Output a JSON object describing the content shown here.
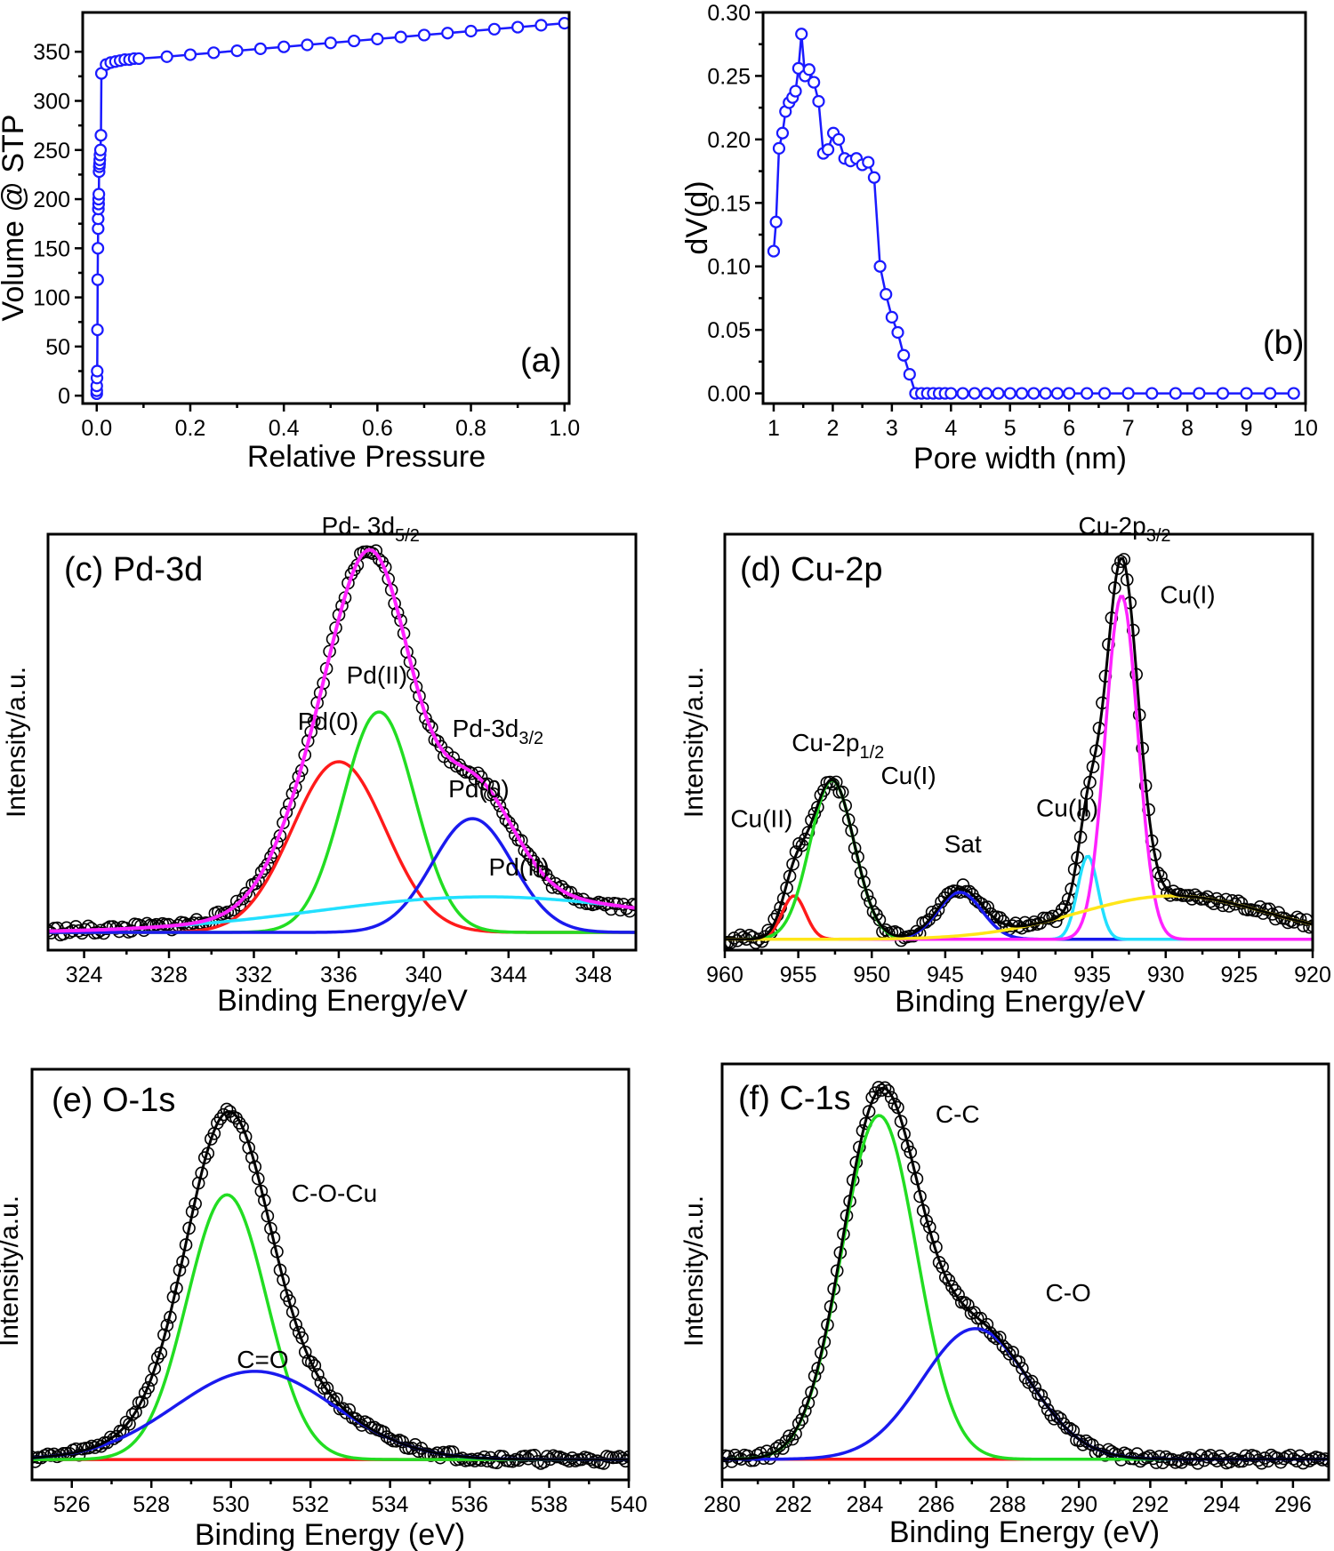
{
  "chart_data": [
    {
      "id": "a",
      "type": "line",
      "panel_label": "(a)",
      "xlabel": "Relative Pressure",
      "ylabel": "Volume @ STP",
      "xlim": [
        -0.03,
        1.01
      ],
      "ylim": [
        -8,
        390
      ],
      "xticks": [
        0.0,
        0.2,
        0.4,
        0.6,
        0.8,
        1.0
      ],
      "xtick_labels": [
        "0.0",
        "0.2",
        "0.4",
        "0.6",
        "0.8",
        "1.0"
      ],
      "yticks": [
        0,
        50,
        100,
        150,
        200,
        250,
        300,
        350
      ],
      "ytick_labels": [
        "0",
        "50",
        "100",
        "150",
        "200",
        "250",
        "300",
        "350"
      ],
      "series": [
        {
          "color": "#1a1aff",
          "marker": "circle",
          "x": [
            0.0,
            0.0,
            0.0,
            0.0005,
            0.001,
            0.0015,
            0.002,
            0.0025,
            0.003,
            0.003,
            0.0035,
            0.004,
            0.004,
            0.0045,
            0.005,
            0.0055,
            0.006,
            0.0065,
            0.007,
            0.008,
            0.009,
            0.01,
            0.02,
            0.03,
            0.04,
            0.05,
            0.06,
            0.07,
            0.08,
            0.09,
            0.15,
            0.2,
            0.25,
            0.3,
            0.35,
            0.4,
            0.45,
            0.5,
            0.55,
            0.6,
            0.65,
            0.7,
            0.75,
            0.8,
            0.85,
            0.9,
            0.95,
            1.0
          ],
          "y": [
            2,
            5,
            10,
            18,
            25,
            67,
            118,
            150,
            170,
            180,
            190,
            195,
            200,
            205,
            228,
            233,
            236,
            240,
            245,
            250,
            265,
            328,
            337,
            339,
            340,
            341,
            342,
            342,
            343,
            343,
            345,
            347,
            349,
            351,
            353,
            355,
            357,
            359,
            361,
            363,
            365,
            367,
            369,
            371,
            373,
            375,
            377,
            379
          ]
        }
      ]
    },
    {
      "id": "b",
      "type": "line",
      "panel_label": "(b)",
      "xlabel": "Pore width (nm)",
      "ylabel": "dV(d)",
      "xlim": [
        0.82,
        10.0
      ],
      "ylim": [
        -0.008,
        0.3
      ],
      "xticks": [
        1,
        2,
        3,
        4,
        5,
        6,
        7,
        8,
        9,
        10
      ],
      "xtick_labels": [
        "1",
        "2",
        "3",
        "4",
        "5",
        "6",
        "7",
        "8",
        "9",
        "10"
      ],
      "yticks": [
        0.0,
        0.05,
        0.1,
        0.15,
        0.2,
        0.25,
        0.3
      ],
      "ytick_labels": [
        "0.00",
        "0.05",
        "0.10",
        "0.15",
        "0.20",
        "0.25",
        "0.30"
      ],
      "series": [
        {
          "color": "#1a1aff",
          "marker": "circle",
          "x": [
            1.0,
            1.04,
            1.09,
            1.15,
            1.2,
            1.26,
            1.32,
            1.37,
            1.42,
            1.47,
            1.53,
            1.6,
            1.68,
            1.76,
            1.84,
            1.92,
            2.01,
            2.1,
            2.2,
            2.3,
            2.4,
            2.5,
            2.6,
            2.7,
            2.8,
            2.9,
            3.0,
            3.1,
            3.2,
            3.3,
            3.4,
            3.5,
            3.6,
            3.7,
            3.8,
            3.9,
            4.0,
            4.2,
            4.4,
            4.6,
            4.8,
            5.0,
            5.2,
            5.4,
            5.6,
            5.8,
            6.0,
            6.3,
            6.6,
            7.0,
            7.4,
            7.8,
            8.2,
            8.6,
            9.0,
            9.4,
            9.8
          ],
          "y": [
            0.112,
            0.135,
            0.193,
            0.205,
            0.222,
            0.229,
            0.233,
            0.238,
            0.256,
            0.283,
            0.25,
            0.255,
            0.245,
            0.23,
            0.189,
            0.192,
            0.205,
            0.2,
            0.185,
            0.183,
            0.185,
            0.18,
            0.182,
            0.17,
            0.1,
            0.078,
            0.06,
            0.048,
            0.03,
            0.015,
            0.0,
            0.0,
            0.0,
            0.0,
            0.0,
            0.0,
            0.0,
            0.0,
            0.0,
            0.0,
            0.0,
            0.0,
            0.0,
            0.0,
            0.0,
            0.0,
            0.0,
            0.0,
            0.0,
            0.0,
            0.0,
            0.0,
            0.0,
            0.0,
            0.0,
            0.0,
            0.0
          ]
        }
      ]
    },
    {
      "id": "c",
      "type": "line",
      "panel_label": "(c) Pd-3d",
      "xlabel": "Binding Energy/eV",
      "ylabel": "Intensity/a.u.",
      "xlim": [
        322.3,
        350.0
      ],
      "ylim": [
        -0.05,
        1.12
      ],
      "xticks": [
        324,
        328,
        332,
        336,
        340,
        344,
        348
      ],
      "xtick_labels": [
        "324",
        "328",
        "332",
        "336",
        "340",
        "344",
        "348"
      ],
      "annotations": [
        {
          "text": "Pd- 3d",
          "sub": "5/2",
          "x": 337.5,
          "y": 1.12
        },
        {
          "text": "Pd(II)",
          "sub": "",
          "x": 337.8,
          "y": 0.7
        },
        {
          "text": "Pd(0)",
          "sub": "",
          "x": 335.5,
          "y": 0.57
        },
        {
          "text": "Pd-3d",
          "sub": "3/2",
          "x": 343.5,
          "y": 0.55
        },
        {
          "text": "Pd(0)",
          "sub": "",
          "x": 342.6,
          "y": 0.38
        },
        {
          "text": "Pd(II)",
          "sub": "",
          "x": 344.5,
          "y": 0.16
        }
      ],
      "series": [
        {
          "kind": "data",
          "color": "#000000",
          "marker": "circle",
          "x": [],
          "y": []
        },
        {
          "kind": "envelope",
          "color": "#000000",
          "x": [],
          "y": []
        },
        {
          "kind": "peak",
          "name": "Pd(0)",
          "color": "#ff1a1a",
          "center": 336.0,
          "width": 2.2,
          "height": 0.48
        },
        {
          "kind": "peak",
          "name": "Pd(II)",
          "color": "#22dd22",
          "center": 337.9,
          "width": 1.7,
          "height": 0.62
        },
        {
          "kind": "peak",
          "name": "Pd(0)",
          "color": "#1a1aee",
          "center": 342.3,
          "width": 1.9,
          "height": 0.32
        },
        {
          "kind": "peak",
          "name": "Pd(II)",
          "color": "#22e0ff",
          "center": 343.0,
          "width": 8.0,
          "height": 0.1
        },
        {
          "kind": "fit",
          "color": "#ff22ff"
        }
      ]
    },
    {
      "id": "d",
      "type": "line",
      "panel_label": "(d) Cu-2p",
      "xlabel": "Binding Energy/eV",
      "ylabel": "Intensity/a.u.",
      "xlim": [
        960.0,
        920.0
      ],
      "ylim": [
        -0.03,
        1.12
      ],
      "xticks": [
        960,
        955,
        950,
        945,
        940,
        935,
        930,
        925,
        920
      ],
      "xtick_labels": [
        "960",
        "955",
        "950",
        "945",
        "940",
        "935",
        "930",
        "925",
        "920"
      ],
      "annotations": [
        {
          "text": "Cu-2p",
          "sub": "3/2",
          "x": 932.8,
          "y": 1.12
        },
        {
          "text": "Cu(I)",
          "sub": "",
          "x": 928.5,
          "y": 0.93
        },
        {
          "text": "Cu-2p",
          "sub": "1/2",
          "x": 952.3,
          "y": 0.52
        },
        {
          "text": "Cu(I)",
          "sub": "",
          "x": 947.5,
          "y": 0.43
        },
        {
          "text": "Cu(II)",
          "sub": "",
          "x": 957.5,
          "y": 0.31
        },
        {
          "text": "Cu(II)",
          "sub": "",
          "x": 936.7,
          "y": 0.34
        },
        {
          "text": "Sat",
          "sub": "",
          "x": 943.8,
          "y": 0.24
        }
      ],
      "series": [
        {
          "kind": "data",
          "color": "#000000",
          "marker": "circle",
          "x": [],
          "y": []
        },
        {
          "kind": "envelope",
          "color": "#000000",
          "x": [],
          "y": []
        },
        {
          "kind": "peak",
          "name": "Cu(II)",
          "color": "#ff1a1a",
          "center": 955.3,
          "width": 0.8,
          "height": 0.12
        },
        {
          "kind": "peak",
          "name": "Cu(I)",
          "color": "#22dd22",
          "center": 952.7,
          "width": 1.5,
          "height": 0.44
        },
        {
          "kind": "peak",
          "name": "Sat",
          "color": "#1a1aee",
          "center": 944.0,
          "width": 1.5,
          "height": 0.13
        },
        {
          "kind": "peak",
          "name": "Cu(II)",
          "color": "#22e0ff",
          "center": 935.3,
          "width": 0.7,
          "height": 0.23
        },
        {
          "kind": "peak",
          "name": "Cu(I)",
          "color": "#ff22ff",
          "center": 933.0,
          "width": 1.1,
          "height": 0.95
        },
        {
          "kind": "peak",
          "name": "",
          "color": "#ffe619",
          "center": 929.5,
          "width": 6.5,
          "height": 0.12
        }
      ]
    },
    {
      "id": "e",
      "type": "line",
      "panel_label": "(e) O-1s",
      "xlabel": "Binding Energy (eV)",
      "ylabel": "Intensity/a.u.",
      "xlim": [
        525.0,
        540.0
      ],
      "ylim": [
        -0.06,
        1.15
      ],
      "xticks": [
        526,
        528,
        530,
        532,
        534,
        536,
        538,
        540
      ],
      "xtick_labels": [
        "526",
        "528",
        "530",
        "532",
        "534",
        "536",
        "538",
        "540"
      ],
      "annotations": [
        {
          "text": "C-O-Cu",
          "sub": "",
          "x": 532.6,
          "y": 0.76
        },
        {
          "text": "C=O",
          "sub": "",
          "x": 530.8,
          "y": 0.27
        }
      ],
      "series": [
        {
          "kind": "data",
          "color": "#000000",
          "marker": "circle",
          "x": [],
          "y": []
        },
        {
          "kind": "envelope",
          "color": "#000000",
          "x": [],
          "y": []
        },
        {
          "kind": "peak",
          "name": "C-O-Cu",
          "color": "#22dd22",
          "center": 529.9,
          "width": 1.0,
          "height": 0.78
        },
        {
          "kind": "peak",
          "name": "C=O",
          "color": "#1a1aee",
          "center": 530.6,
          "width": 2.0,
          "height": 0.26
        },
        {
          "kind": "baseline",
          "color": "#ff1a1a"
        }
      ]
    },
    {
      "id": "f",
      "type": "line",
      "panel_label": "(f) C-1s",
      "xlabel": "Binding Energy (eV)",
      "ylabel": "Intensity/a.u.",
      "xlim": [
        280.0,
        297.0
      ],
      "ylim": [
        -0.06,
        1.15
      ],
      "xticks": [
        280,
        282,
        284,
        286,
        288,
        290,
        292,
        294,
        296
      ],
      "xtick_labels": [
        "280",
        "282",
        "284",
        "286",
        "288",
        "290",
        "292",
        "294",
        "296"
      ],
      "annotations": [
        {
          "text": "C-C",
          "sub": "",
          "x": 286.6,
          "y": 0.98
        },
        {
          "text": "C-O",
          "sub": "",
          "x": 289.7,
          "y": 0.46
        }
      ],
      "series": [
        {
          "kind": "data",
          "color": "#000000",
          "marker": "circle",
          "x": [],
          "y": []
        },
        {
          "kind": "envelope",
          "color": "#000000",
          "x": [],
          "y": []
        },
        {
          "kind": "peak",
          "name": "C-C",
          "color": "#22dd22",
          "center": 284.4,
          "width": 1.05,
          "height": 1.0
        },
        {
          "kind": "peak",
          "name": "C-O",
          "color": "#1a1aee",
          "center": 287.1,
          "width": 1.5,
          "height": 0.38
        },
        {
          "kind": "baseline",
          "color": "#ff1a1a"
        }
      ]
    }
  ]
}
